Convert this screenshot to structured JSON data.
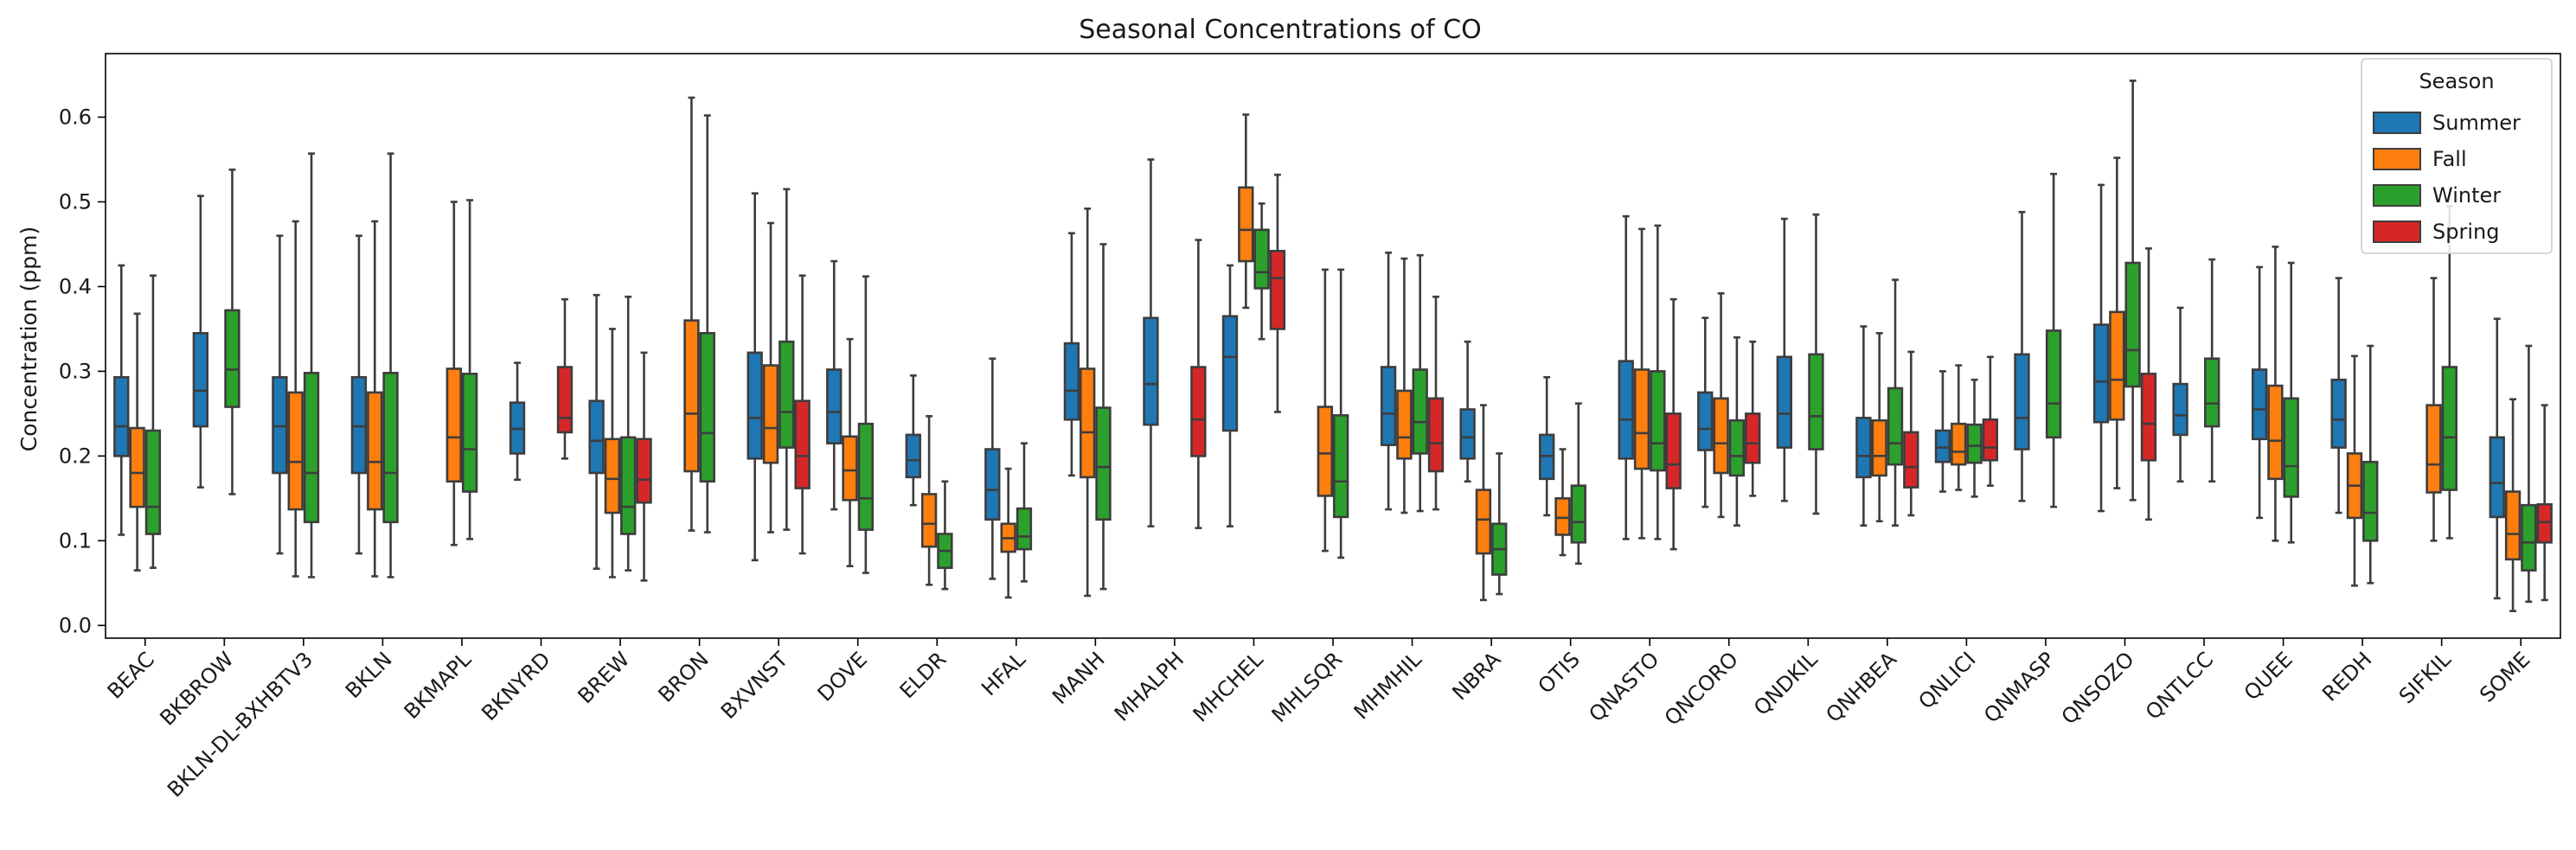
{
  "chart_data": {
    "type": "box",
    "title": "Seasonal Concentrations of CO",
    "xlabel": "",
    "ylabel": "Concentration (ppm)",
    "ylim": [
      -0.015,
      0.675
    ],
    "yticks": [
      "0.0",
      "0.1",
      "0.2",
      "0.3",
      "0.4",
      "0.5",
      "0.6"
    ],
    "grid": false,
    "legend": {
      "title": "Season",
      "position": "top-right",
      "entries": [
        {
          "label": "Summer",
          "color": "#1f77b4"
        },
        {
          "label": "Fall",
          "color": "#ff7f0e"
        },
        {
          "label": "Winter",
          "color": "#2ca02c"
        },
        {
          "label": "Spring",
          "color": "#d62728"
        }
      ]
    },
    "categories": [
      "BEAC",
      "BKBROW",
      "BKLN-DL-BXHBTV3",
      "BKLN",
      "BKMAPL",
      "BKNYRD",
      "BREW",
      "BRON",
      "BXVNST",
      "DOVE",
      "ELDR",
      "HFAL",
      "MANH",
      "MHALPH",
      "MHCHEL",
      "MHLSQR",
      "MHMHIL",
      "NBRA",
      "OTIS",
      "QNASTO",
      "QNCORO",
      "QNDKIL",
      "QNHBEA",
      "QNLICI",
      "QNMASP",
      "QNSOZO",
      "QNTLCC",
      "QUEE",
      "REDH",
      "SIFKIL",
      "SOME"
    ],
    "series": [
      {
        "name": "Summer",
        "color": "#1f77b4",
        "boxes": [
          [
            0.107,
            0.2,
            0.235,
            0.293,
            0.425
          ],
          [
            0.163,
            0.235,
            0.277,
            0.345,
            0.507
          ],
          [
            0.085,
            0.18,
            0.235,
            0.293,
            0.46
          ],
          [
            0.085,
            0.18,
            0.235,
            0.293,
            0.46
          ],
          null,
          [
            0.172,
            0.203,
            0.232,
            0.263,
            0.31
          ],
          [
            0.067,
            0.18,
            0.218,
            0.265,
            0.39
          ],
          null,
          [
            0.077,
            0.197,
            0.245,
            0.322,
            0.51
          ],
          [
            0.137,
            0.215,
            0.252,
            0.302,
            0.43
          ],
          [
            0.142,
            0.175,
            0.195,
            0.225,
            0.295
          ],
          [
            0.055,
            0.125,
            0.16,
            0.208,
            0.315
          ],
          [
            0.177,
            0.243,
            0.277,
            0.333,
            0.463
          ],
          [
            0.117,
            0.237,
            0.285,
            0.363,
            0.55
          ],
          [
            0.117,
            0.23,
            0.317,
            0.365,
            0.425
          ],
          null,
          [
            0.137,
            0.213,
            0.25,
            0.305,
            0.44
          ],
          [
            0.17,
            0.197,
            0.222,
            0.255,
            0.335
          ],
          [
            0.13,
            0.173,
            0.2,
            0.225,
            0.293
          ],
          [
            0.102,
            0.197,
            0.243,
            0.312,
            0.483
          ],
          [
            0.14,
            0.207,
            0.232,
            0.275,
            0.363
          ],
          [
            0.147,
            0.21,
            0.25,
            0.317,
            0.48
          ],
          [
            0.118,
            0.175,
            0.2,
            0.245,
            0.353
          ],
          [
            0.158,
            0.193,
            0.21,
            0.23,
            0.3
          ],
          [
            0.147,
            0.208,
            0.245,
            0.32,
            0.488
          ],
          [
            0.135,
            0.24,
            0.288,
            0.355,
            0.52
          ],
          [
            0.17,
            0.225,
            0.248,
            0.285,
            0.375
          ],
          [
            0.127,
            0.22,
            0.255,
            0.302,
            0.423
          ],
          [
            0.133,
            0.21,
            0.243,
            0.29,
            0.41
          ],
          null,
          [
            0.032,
            0.128,
            0.168,
            0.222,
            0.362
          ]
        ]
      },
      {
        "name": "Fall",
        "color": "#ff7f0e",
        "boxes": [
          [
            0.065,
            0.14,
            0.18,
            0.233,
            0.368
          ],
          null,
          [
            0.058,
            0.137,
            0.193,
            0.275,
            0.477
          ],
          [
            0.058,
            0.137,
            0.193,
            0.275,
            0.477
          ],
          [
            0.095,
            0.17,
            0.222,
            0.303,
            0.5
          ],
          null,
          [
            0.057,
            0.133,
            0.173,
            0.22,
            0.35
          ],
          [
            0.112,
            0.182,
            0.25,
            0.36,
            0.623
          ],
          [
            0.11,
            0.192,
            0.233,
            0.307,
            0.475
          ],
          [
            0.07,
            0.148,
            0.183,
            0.223,
            0.338
          ],
          [
            0.048,
            0.093,
            0.12,
            0.155,
            0.247
          ],
          [
            0.033,
            0.087,
            0.103,
            0.12,
            0.185
          ],
          [
            0.035,
            0.175,
            0.228,
            0.303,
            0.492
          ],
          null,
          [
            0.375,
            0.43,
            0.467,
            0.517,
            0.603
          ],
          [
            0.088,
            0.153,
            0.203,
            0.258,
            0.42
          ],
          [
            0.133,
            0.197,
            0.222,
            0.277,
            0.433
          ],
          [
            0.03,
            0.085,
            0.125,
            0.16,
            0.26
          ],
          [
            0.083,
            0.107,
            0.127,
            0.15,
            0.208
          ],
          [
            0.103,
            0.185,
            0.227,
            0.302,
            0.468
          ],
          [
            0.128,
            0.18,
            0.215,
            0.268,
            0.392
          ],
          null,
          [
            0.123,
            0.177,
            0.2,
            0.242,
            0.345
          ],
          [
            0.16,
            0.19,
            0.205,
            0.238,
            0.307
          ],
          null,
          [
            0.162,
            0.243,
            0.29,
            0.37,
            0.552
          ],
          null,
          [
            0.1,
            0.173,
            0.218,
            0.283,
            0.447
          ],
          [
            0.047,
            0.127,
            0.165,
            0.203,
            0.318
          ],
          [
            0.1,
            0.157,
            0.19,
            0.26,
            0.41
          ],
          [
            0.017,
            0.078,
            0.108,
            0.158,
            0.267
          ]
        ]
      },
      {
        "name": "Winter",
        "color": "#2ca02c",
        "boxes": [
          [
            0.068,
            0.108,
            0.14,
            0.23,
            0.413
          ],
          [
            0.155,
            0.258,
            0.302,
            0.372,
            0.538
          ],
          [
            0.057,
            0.122,
            0.18,
            0.298,
            0.557
          ],
          [
            0.057,
            0.122,
            0.18,
            0.298,
            0.557
          ],
          [
            0.102,
            0.158,
            0.208,
            0.297,
            0.502
          ],
          null,
          [
            0.065,
            0.108,
            0.14,
            0.222,
            0.388
          ],
          [
            0.11,
            0.17,
            0.227,
            0.345,
            0.602
          ],
          [
            0.113,
            0.21,
            0.252,
            0.335,
            0.515
          ],
          [
            0.062,
            0.113,
            0.15,
            0.238,
            0.412
          ],
          [
            0.043,
            0.068,
            0.088,
            0.108,
            0.17
          ],
          [
            0.052,
            0.09,
            0.105,
            0.138,
            0.215
          ],
          [
            0.043,
            0.125,
            0.187,
            0.257,
            0.45
          ],
          null,
          [
            0.338,
            0.398,
            0.417,
            0.467,
            0.498
          ],
          [
            0.08,
            0.128,
            0.17,
            0.248,
            0.42
          ],
          [
            0.135,
            0.203,
            0.24,
            0.302,
            0.437
          ],
          [
            0.037,
            0.06,
            0.09,
            0.12,
            0.203
          ],
          [
            0.073,
            0.098,
            0.122,
            0.165,
            0.262
          ],
          [
            0.102,
            0.183,
            0.215,
            0.3,
            0.472
          ],
          [
            0.118,
            0.177,
            0.2,
            0.242,
            0.34
          ],
          [
            0.132,
            0.208,
            0.247,
            0.32,
            0.485
          ],
          [
            0.118,
            0.19,
            0.215,
            0.28,
            0.408
          ],
          [
            0.152,
            0.192,
            0.212,
            0.237,
            0.29
          ],
          [
            0.14,
            0.222,
            0.262,
            0.348,
            0.533
          ],
          [
            0.148,
            0.282,
            0.325,
            0.428,
            0.643
          ],
          [
            0.17,
            0.235,
            0.262,
            0.315,
            0.432
          ],
          [
            0.098,
            0.152,
            0.188,
            0.268,
            0.428
          ],
          [
            0.05,
            0.1,
            0.133,
            0.193,
            0.33
          ],
          [
            0.103,
            0.16,
            0.222,
            0.305,
            0.495
          ],
          [
            0.028,
            0.065,
            0.098,
            0.142,
            0.33
          ]
        ]
      },
      {
        "name": "Spring",
        "color": "#d62728",
        "boxes": [
          null,
          null,
          null,
          null,
          null,
          [
            0.197,
            0.228,
            0.245,
            0.305,
            0.385
          ],
          [
            0.053,
            0.145,
            0.172,
            0.22,
            0.322
          ],
          null,
          [
            0.085,
            0.162,
            0.2,
            0.265,
            0.413
          ],
          null,
          null,
          null,
          null,
          [
            0.115,
            0.2,
            0.243,
            0.305,
            0.455
          ],
          [
            0.252,
            0.35,
            0.41,
            0.442,
            0.532
          ],
          null,
          [
            0.137,
            0.182,
            0.215,
            0.268,
            0.388
          ],
          null,
          null,
          [
            0.09,
            0.162,
            0.19,
            0.25,
            0.385
          ],
          [
            0.153,
            0.192,
            0.215,
            0.25,
            0.335
          ],
          null,
          [
            0.13,
            0.163,
            0.187,
            0.228,
            0.323
          ],
          [
            0.165,
            0.195,
            0.21,
            0.243,
            0.317
          ],
          null,
          [
            0.125,
            0.195,
            0.238,
            0.297,
            0.445
          ],
          null,
          null,
          null,
          null,
          [
            0.03,
            0.098,
            0.122,
            0.143,
            0.26
          ]
        ]
      }
    ]
  }
}
